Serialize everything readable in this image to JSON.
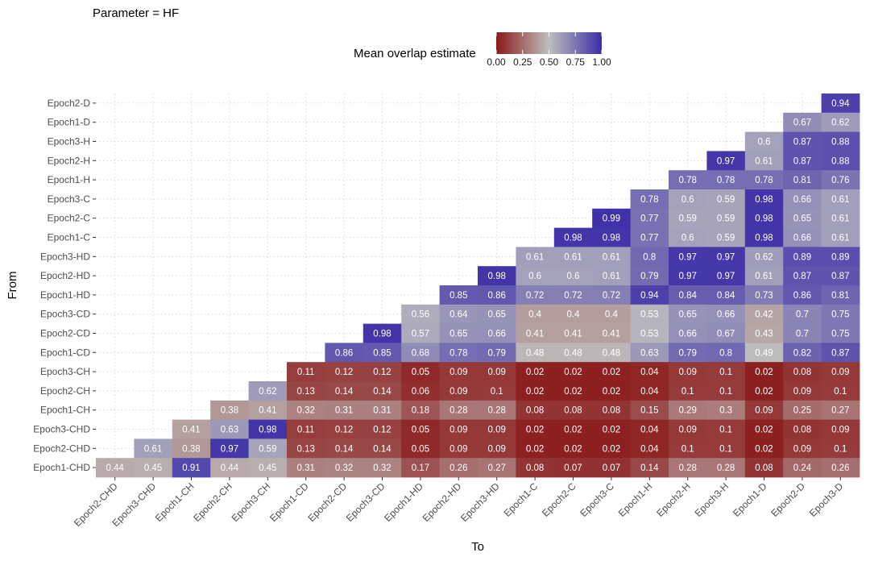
{
  "title": "Parameter = HF",
  "chart_data": {
    "type": "heatmap",
    "xlabel": "To",
    "ylabel": "From",
    "legend_title": "Mean overlap estimate",
    "legend_ticks": [
      "0.00",
      "0.25",
      "0.50",
      "0.75",
      "1.00"
    ],
    "color_scale": {
      "low": "#8B1A1A",
      "mid": "#BEBEBE",
      "high": "#3C2FA8",
      "range": [
        0,
        1
      ]
    },
    "grid": true,
    "x_categories": [
      "Epoch2-CHD",
      "Epoch3-CHD",
      "Epoch1-CH",
      "Epoch2-CH",
      "Epoch3-CH",
      "Epoch1-CD",
      "Epoch2-CD",
      "Epoch3-CD",
      "Epoch1-HD",
      "Epoch2-HD",
      "Epoch3-HD",
      "Epoch1-C",
      "Epoch2-C",
      "Epoch3-C",
      "Epoch1-H",
      "Epoch2-H",
      "Epoch3-H",
      "Epoch1-D",
      "Epoch2-D",
      "Epoch3-D"
    ],
    "y_categories": [
      "Epoch2-D",
      "Epoch1-D",
      "Epoch3-H",
      "Epoch2-H",
      "Epoch1-H",
      "Epoch3-C",
      "Epoch2-C",
      "Epoch1-C",
      "Epoch3-HD",
      "Epoch2-HD",
      "Epoch1-HD",
      "Epoch3-CD",
      "Epoch2-CD",
      "Epoch1-CD",
      "Epoch3-CH",
      "Epoch2-CH",
      "Epoch1-CH",
      "Epoch3-CHD",
      "Epoch2-CHD",
      "Epoch1-CHD"
    ],
    "rows": [
      {
        "from": "Epoch2-D",
        "values": [
          0.94
        ]
      },
      {
        "from": "Epoch1-D",
        "values": [
          0.67,
          0.62
        ]
      },
      {
        "from": "Epoch3-H",
        "values": [
          0.6,
          0.87,
          0.88
        ]
      },
      {
        "from": "Epoch2-H",
        "values": [
          0.97,
          0.61,
          0.87,
          0.88
        ]
      },
      {
        "from": "Epoch1-H",
        "values": [
          0.78,
          0.78,
          0.78,
          0.81,
          0.76
        ]
      },
      {
        "from": "Epoch3-C",
        "values": [
          0.78,
          0.6,
          0.59,
          0.98,
          0.66,
          0.61
        ]
      },
      {
        "from": "Epoch2-C",
        "values": [
          0.99,
          0.77,
          0.59,
          0.59,
          0.98,
          0.65,
          0.61
        ]
      },
      {
        "from": "Epoch1-C",
        "values": [
          0.98,
          0.98,
          0.77,
          0.6,
          0.59,
          0.98,
          0.66,
          0.61
        ]
      },
      {
        "from": "Epoch3-HD",
        "values": [
          0.61,
          0.61,
          0.61,
          0.8,
          0.97,
          0.97,
          0.62,
          0.89,
          0.89
        ]
      },
      {
        "from": "Epoch2-HD",
        "values": [
          0.98,
          0.6,
          0.6,
          0.61,
          0.79,
          0.97,
          0.97,
          0.61,
          0.87,
          0.87
        ]
      },
      {
        "from": "Epoch1-HD",
        "values": [
          0.85,
          0.86,
          0.72,
          0.72,
          0.72,
          0.94,
          0.84,
          0.84,
          0.73,
          0.86,
          0.81
        ]
      },
      {
        "from": "Epoch3-CD",
        "values": [
          0.56,
          0.64,
          0.65,
          0.4,
          0.4,
          0.4,
          0.53,
          0.65,
          0.66,
          0.42,
          0.7,
          0.75
        ]
      },
      {
        "from": "Epoch2-CD",
        "values": [
          0.98,
          0.57,
          0.65,
          0.66,
          0.41,
          0.41,
          0.41,
          0.53,
          0.66,
          0.67,
          0.43,
          0.7,
          0.75
        ]
      },
      {
        "from": "Epoch1-CD",
        "values": [
          0.86,
          0.85,
          0.68,
          0.78,
          0.79,
          0.48,
          0.48,
          0.48,
          0.63,
          0.79,
          0.8,
          0.49,
          0.82,
          0.87
        ]
      },
      {
        "from": "Epoch3-CH",
        "values": [
          0.11,
          0.12,
          0.12,
          0.05,
          0.09,
          0.09,
          0.02,
          0.02,
          0.02,
          0.04,
          0.09,
          0.1,
          0.02,
          0.08,
          0.09
        ]
      },
      {
        "from": "Epoch2-CH",
        "values": [
          0.62,
          0.13,
          0.14,
          0.14,
          0.06,
          0.09,
          0.1,
          0.02,
          0.02,
          0.02,
          0.04,
          0.1,
          0.1,
          0.02,
          0.09,
          0.1
        ]
      },
      {
        "from": "Epoch1-CH",
        "values": [
          0.38,
          0.41,
          0.32,
          0.31,
          0.31,
          0.18,
          0.28,
          0.28,
          0.08,
          0.08,
          0.08,
          0.15,
          0.29,
          0.3,
          0.09,
          0.25,
          0.27
        ]
      },
      {
        "from": "Epoch3-CHD",
        "values": [
          0.41,
          0.63,
          0.98,
          0.11,
          0.12,
          0.12,
          0.05,
          0.09,
          0.09,
          0.02,
          0.02,
          0.02,
          0.04,
          0.09,
          0.1,
          0.02,
          0.08,
          0.09
        ]
      },
      {
        "from": "Epoch2-CHD",
        "values": [
          0.61,
          0.38,
          0.97,
          0.59,
          0.13,
          0.14,
          0.14,
          0.05,
          0.09,
          0.09,
          0.02,
          0.02,
          0.02,
          0.04,
          0.1,
          0.1,
          0.02,
          0.09,
          0.1
        ]
      },
      {
        "from": "Epoch1-CHD",
        "values": [
          0.44,
          0.45,
          0.91,
          0.44,
          0.45,
          0.31,
          0.32,
          0.32,
          0.17,
          0.26,
          0.27,
          0.08,
          0.07,
          0.07,
          0.14,
          0.28,
          0.28,
          0.08,
          0.24,
          0.26
        ]
      }
    ]
  }
}
